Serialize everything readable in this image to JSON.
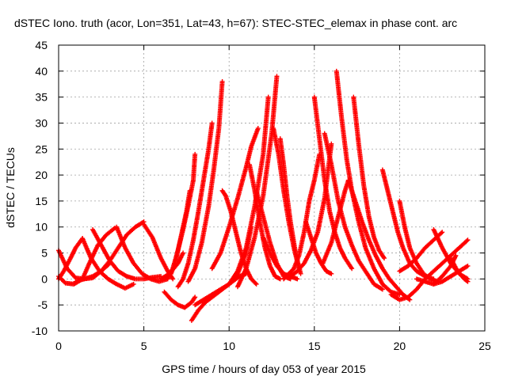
{
  "chart_data": {
    "type": "scatter",
    "title": "dSTEC Iono. truth (acor, Lon=351, Lat=43, h=67): STEC-STEC_elemax in phase cont. arc",
    "xlabel": "GPS time / hours of day 053 of year 2015",
    "ylabel": "dSTEC  / TECUs",
    "xlim": [
      0,
      25
    ],
    "ylim": [
      -10,
      45
    ],
    "xticks": [
      0,
      5,
      10,
      15,
      20,
      25
    ],
    "yticks": [
      -10,
      -5,
      0,
      5,
      10,
      15,
      20,
      25,
      30,
      35,
      40,
      45
    ],
    "grid": true,
    "marker": "plus",
    "series_color": "#ff0000",
    "arcs": [
      {
        "x": [
          0.0,
          0.5,
          1.0,
          1.5,
          2.0,
          2.5,
          3.0
        ],
        "y": [
          5.5,
          2.0,
          0.2,
          0.0,
          0.5,
          1.5,
          3.0
        ]
      },
      {
        "x": [
          0.0,
          0.4,
          0.9,
          1.4,
          1.8,
          2.3,
          2.8,
          3.3
        ],
        "y": [
          0.5,
          -0.8,
          -1.0,
          0.0,
          3.0,
          6.5,
          8.5,
          9.8
        ]
      },
      {
        "x": [
          0.0,
          0.3,
          0.7,
          1.0,
          1.4
        ],
        "y": [
          0.0,
          1.5,
          4.0,
          6.0,
          7.8
        ]
      },
      {
        "x": [
          1.4,
          1.9,
          2.4,
          2.9,
          3.4,
          3.9,
          4.4
        ],
        "y": [
          7.8,
          4.0,
          1.5,
          0.0,
          -1.0,
          -1.8,
          -1.0
        ]
      },
      {
        "x": [
          1.0,
          1.5,
          2.0,
          2.5,
          3.0,
          3.5,
          4.0,
          4.5,
          5.0
        ],
        "y": [
          -0.5,
          0.0,
          0.2,
          1.5,
          3.5,
          6.0,
          8.5,
          10.0,
          11.0
        ]
      },
      {
        "x": [
          2.0,
          2.5,
          3.0,
          3.5,
          4.0,
          4.5,
          5.0,
          5.5,
          6.0
        ],
        "y": [
          9.5,
          6.5,
          3.5,
          1.5,
          0.5,
          0.0,
          0.0,
          0.3,
          0.5
        ]
      },
      {
        "x": [
          3.4,
          3.9,
          4.4,
          4.9,
          5.4,
          5.9,
          6.4
        ],
        "y": [
          10.0,
          6.0,
          3.0,
          1.0,
          0.0,
          -0.5,
          0.0
        ]
      },
      {
        "x": [
          5.0,
          5.5,
          6.0,
          6.4,
          6.7
        ],
        "y": [
          10.5,
          8.0,
          4.0,
          1.5,
          0.0
        ]
      },
      {
        "x": [
          6.0,
          6.5,
          7.0,
          7.3
        ],
        "y": [
          0.0,
          1.0,
          3.0,
          5.0
        ]
      },
      {
        "x": [
          6.2,
          6.6,
          7.0,
          7.4,
          7.8,
          8.0
        ],
        "y": [
          -2.5,
          -4.0,
          -5.0,
          -5.5,
          -4.5,
          -3.5
        ]
      },
      {
        "x": [
          6.4,
          6.7,
          7.0,
          7.3,
          7.6,
          7.9,
          8.0
        ],
        "y": [
          0.2,
          2.0,
          5.5,
          9.5,
          14.0,
          19.0,
          24.0
        ]
      },
      {
        "x": [
          6.6,
          6.9,
          7.2,
          7.5,
          7.7
        ],
        "y": [
          1.0,
          4.0,
          8.5,
          13.0,
          17.0
        ]
      },
      {
        "x": [
          7.0,
          7.3,
          7.6,
          7.9,
          8.2,
          8.5,
          8.8,
          9.0
        ],
        "y": [
          -1.5,
          0.0,
          3.0,
          7.5,
          13.0,
          19.0,
          25.0,
          30.0
        ]
      },
      {
        "x": [
          7.6,
          8.0,
          8.4,
          8.8,
          9.1,
          9.4,
          9.6
        ],
        "y": [
          -0.5,
          2.0,
          7.0,
          14.0,
          21.0,
          29.0,
          38.0
        ]
      },
      {
        "x": [
          7.8,
          8.2,
          8.6,
          9.0,
          9.4,
          9.8,
          10.2,
          10.6,
          11.0
        ],
        "y": [
          -8.0,
          -6.0,
          -4.5,
          -3.5,
          -2.5,
          -1.5,
          -0.5,
          0.5,
          1.0
        ]
      },
      {
        "x": [
          8.0,
          8.5,
          9.0,
          9.5,
          10.0,
          10.5,
          11.0,
          11.3
        ],
        "y": [
          -5.0,
          -4.0,
          -3.0,
          -2.0,
          -1.0,
          1.0,
          5.0,
          10.0
        ]
      },
      {
        "x": [
          9.0,
          9.5,
          10.0,
          10.5,
          11.0,
          11.3,
          11.7
        ],
        "y": [
          2.0,
          5.0,
          10.0,
          15.5,
          21.5,
          25.5,
          29.0
        ]
      },
      {
        "x": [
          9.6,
          9.8,
          10.1,
          10.4,
          10.7,
          11.0,
          11.3,
          11.6
        ],
        "y": [
          17.0,
          16.0,
          13.0,
          9.0,
          5.0,
          2.0,
          0.0,
          -1.0
        ]
      },
      {
        "x": [
          10.0,
          10.5,
          11.0,
          11.5,
          12.0,
          12.3
        ],
        "y": [
          -1.0,
          1.5,
          6.0,
          14.0,
          24.0,
          35.0
        ]
      },
      {
        "x": [
          10.5,
          11.0,
          11.5,
          12.0,
          12.5,
          12.8
        ],
        "y": [
          -1.5,
          2.0,
          8.0,
          16.0,
          28.0,
          39.0
        ]
      },
      {
        "x": [
          11.2,
          11.5,
          11.8,
          12.1,
          12.4,
          12.7,
          13.0
        ],
        "y": [
          22.0,
          17.0,
          11.0,
          6.0,
          2.5,
          0.5,
          0.0
        ]
      },
      {
        "x": [
          11.6,
          12.0,
          12.4,
          12.8,
          13.2,
          13.6
        ],
        "y": [
          17.0,
          12.0,
          7.0,
          3.0,
          0.5,
          0.0
        ]
      },
      {
        "x": [
          12.0,
          12.4,
          12.8,
          13.2,
          13.6,
          14.0
        ],
        "y": [
          8.0,
          5.0,
          2.5,
          1.0,
          0.5,
          0.0
        ]
      },
      {
        "x": [
          12.6,
          12.9,
          13.2,
          13.5,
          13.8,
          14.1
        ],
        "y": [
          29.0,
          24.0,
          17.0,
          11.0,
          6.0,
          2.0
        ]
      },
      {
        "x": [
          13.0,
          13.2,
          13.4,
          13.6,
          13.9,
          14.2
        ],
        "y": [
          27.0,
          22.0,
          16.0,
          11.0,
          5.0,
          1.0
        ]
      },
      {
        "x": [
          13.2,
          13.5,
          13.8,
          14.1,
          14.4,
          14.7,
          15.0,
          15.3
        ],
        "y": [
          0.0,
          1.0,
          2.0,
          4.5,
          9.0,
          15.0,
          19.0,
          24.0
        ]
      },
      {
        "x": [
          13.6,
          14.0,
          14.4,
          14.8,
          15.2,
          15.6,
          16.0
        ],
        "y": [
          0.5,
          1.5,
          3.0,
          5.5,
          9.0,
          15.5,
          26.0
        ]
      },
      {
        "x": [
          14.5,
          14.8,
          15.1,
          15.4,
          15.7,
          16.0
        ],
        "y": [
          11.0,
          8.0,
          5.0,
          3.0,
          1.5,
          1.0
        ]
      },
      {
        "x": [
          15.0,
          15.3,
          15.6,
          15.9,
          16.2,
          16.5,
          16.8,
          17.2
        ],
        "y": [
          35.0,
          27.0,
          19.0,
          13.0,
          9.0,
          6.0,
          4.0,
          2.0
        ]
      },
      {
        "x": [
          15.6,
          16.0,
          16.4,
          16.8,
          17.2,
          17.6,
          18.0,
          18.5,
          19.0
        ],
        "y": [
          28.0,
          22.0,
          15.0,
          10.0,
          6.5,
          3.5,
          1.5,
          -1.0,
          -2.0
        ]
      },
      {
        "x": [
          16.3,
          16.6,
          16.9,
          17.2,
          17.6,
          18.0,
          18.5,
          19.0,
          19.5,
          20.0
        ],
        "y": [
          40.0,
          31.0,
          23.0,
          17.0,
          11.0,
          6.0,
          2.0,
          -1.0,
          -2.5,
          -3.0
        ]
      },
      {
        "x": [
          15.5,
          16.0,
          16.4,
          16.8,
          17.0
        ],
        "y": [
          3.0,
          7.0,
          12.0,
          17.0,
          19.0
        ]
      },
      {
        "x": [
          17.0,
          17.4,
          17.8,
          18.2,
          18.6,
          19.0,
          19.4,
          19.8,
          20.2,
          20.6
        ],
        "y": [
          19.0,
          15.0,
          11.0,
          7.5,
          4.5,
          2.0,
          0.0,
          -1.5,
          -3.0,
          -4.0
        ]
      },
      {
        "x": [
          17.3,
          17.6,
          17.9,
          18.2,
          18.5,
          18.8,
          19.1
        ],
        "y": [
          35.0,
          26.0,
          18.0,
          12.0,
          8.0,
          5.5,
          4.0
        ]
      },
      {
        "x": [
          19.0,
          19.3,
          19.6,
          19.9,
          20.2,
          20.6,
          21.0,
          21.5,
          22.0
        ],
        "y": [
          21.0,
          17.0,
          13.0,
          9.0,
          6.0,
          3.0,
          1.5,
          0.5,
          0.0
        ]
      },
      {
        "x": [
          19.5,
          20.0,
          20.5,
          21.0,
          21.5,
          22.0,
          22.5,
          23.0,
          23.5,
          24.0
        ],
        "y": [
          -3.0,
          -4.0,
          -3.5,
          -2.0,
          0.0,
          1.5,
          3.0,
          4.5,
          6.0,
          7.5
        ]
      },
      {
        "x": [
          20.0,
          20.3,
          20.6,
          21.0,
          21.4,
          21.8,
          22.2
        ],
        "y": [
          15.0,
          10.0,
          6.0,
          3.0,
          1.0,
          0.0,
          -0.5
        ]
      },
      {
        "x": [
          20.0,
          20.5,
          21.0,
          21.5,
          22.0,
          22.5
        ],
        "y": [
          1.5,
          2.5,
          4.0,
          6.0,
          7.5,
          9.0
        ]
      },
      {
        "x": [
          21.0,
          21.5,
          22.0,
          22.5,
          23.0,
          23.5,
          24.0
        ],
        "y": [
          0.0,
          -0.5,
          -1.0,
          -0.5,
          0.5,
          1.5,
          2.5
        ]
      },
      {
        "x": [
          22.0,
          22.5,
          23.0,
          23.5,
          24.0
        ],
        "y": [
          9.5,
          6.0,
          3.0,
          1.0,
          0.0
        ]
      },
      {
        "x": [
          22.0,
          22.5,
          23.0,
          23.3
        ],
        "y": [
          -1.0,
          0.5,
          2.5,
          4.5
        ]
      },
      {
        "x": [
          23.0,
          23.4,
          23.8,
          24.0
        ],
        "y": [
          4.0,
          1.5,
          0.0,
          -0.5
        ]
      }
    ]
  }
}
